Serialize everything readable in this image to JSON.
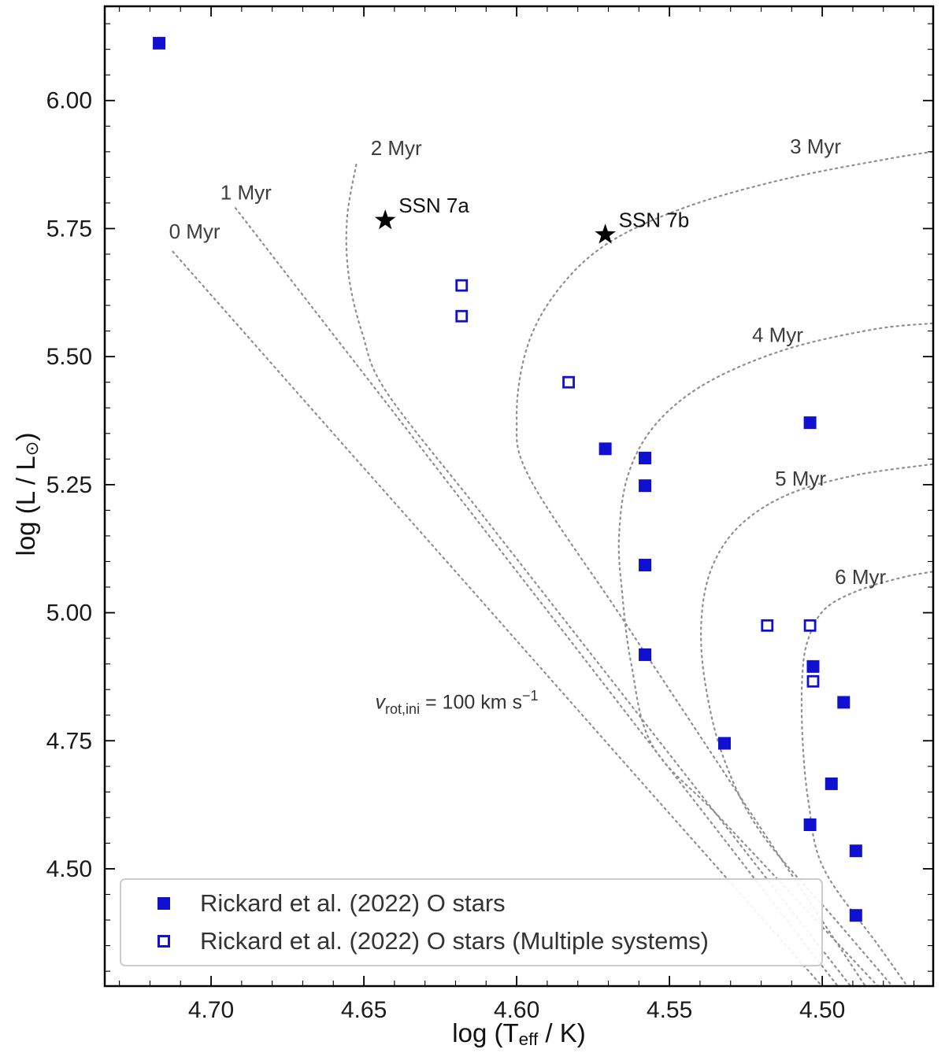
{
  "chart_data": {
    "type": "scatter",
    "title": "",
    "xlabel_parts": [
      {
        "text": "log (T"
      },
      {
        "text": "eff",
        "style": "sub"
      },
      {
        "text": " / K)"
      }
    ],
    "ylabel_parts": [
      {
        "text": "log (L / L"
      },
      {
        "text": "⊙",
        "style": "sub"
      },
      {
        "text": ")"
      }
    ],
    "x_axis": {
      "left_value": 4.7348,
      "right_value": 4.4637,
      "reversed": true,
      "minor_step": 0.01,
      "ticks": [
        {
          "value": 4.7,
          "label": "4.70"
        },
        {
          "value": 4.65,
          "label": "4.65"
        },
        {
          "value": 4.6,
          "label": "4.60"
        },
        {
          "value": 4.55,
          "label": "4.55"
        },
        {
          "value": 4.5,
          "label": "4.50"
        }
      ]
    },
    "y_axis": {
      "bottom_value": 4.271,
      "top_value": 6.184,
      "minor_step": 0.05,
      "ticks": [
        {
          "value": 4.5,
          "label": "4.50"
        },
        {
          "value": 4.75,
          "label": "4.75"
        },
        {
          "value": 5.0,
          "label": "5.00"
        },
        {
          "value": 5.25,
          "label": "5.25"
        },
        {
          "value": 5.5,
          "label": "5.50"
        },
        {
          "value": 5.75,
          "label": "5.75"
        },
        {
          "value": 6.0,
          "label": "6.00"
        }
      ]
    },
    "series": [
      {
        "name": "Rickard et al. (2022) O stars",
        "marker": "filled-square",
        "points": [
          [
            4.717,
            6.112
          ],
          [
            4.571,
            5.32
          ],
          [
            4.558,
            5.302
          ],
          [
            4.558,
            5.248
          ],
          [
            4.504,
            5.371
          ],
          [
            4.558,
            5.093
          ],
          [
            4.558,
            4.918
          ],
          [
            4.503,
            4.895
          ],
          [
            4.493,
            4.825
          ],
          [
            4.532,
            4.745
          ],
          [
            4.497,
            4.666
          ],
          [
            4.504,
            4.586
          ],
          [
            4.489,
            4.535
          ],
          [
            4.489,
            4.409
          ]
        ]
      },
      {
        "name": "Rickard et al. (2022) O stars (Multiple systems)",
        "marker": "open-square",
        "points": [
          [
            4.618,
            5.639
          ],
          [
            4.618,
            5.579
          ],
          [
            4.583,
            5.45
          ],
          [
            4.518,
            4.975
          ],
          [
            4.504,
            4.975
          ],
          [
            4.503,
            4.866
          ]
        ]
      }
    ],
    "special_points": [
      {
        "label": "SSN 7a",
        "x": 4.643,
        "y": 5.766
      },
      {
        "label": "SSN 7b",
        "x": 4.571,
        "y": 5.738
      }
    ],
    "isochrones": [
      {
        "label": "0 Myr",
        "label_pos": [
          4.7054,
          5.741
        ],
        "points": [
          [
            4.7125,
            5.705
          ],
          [
            4.6822,
            5.5
          ],
          [
            4.6526,
            5.3
          ],
          [
            4.6229,
            5.1
          ],
          [
            4.5933,
            4.9
          ],
          [
            4.5637,
            4.7
          ],
          [
            4.534,
            4.5
          ],
          [
            4.5044,
            4.3
          ],
          [
            4.4985,
            4.26
          ]
        ]
      },
      {
        "label": "1 Myr",
        "label_pos": [
          4.6886,
          5.817
        ],
        "points": [
          [
            4.692,
            5.79
          ],
          [
            4.6674,
            5.6
          ],
          [
            4.6414,
            5.4
          ],
          [
            4.6155,
            5.2
          ],
          [
            4.5895,
            5.0
          ],
          [
            4.5636,
            4.8
          ],
          [
            4.5376,
            4.6
          ],
          [
            4.5117,
            4.4
          ],
          [
            4.4935,
            4.26
          ]
        ]
      },
      {
        "label": "2 Myr",
        "label_pos": [
          4.6394,
          5.904
        ],
        "points": [
          [
            4.6525,
            5.875
          ],
          [
            4.6555,
            5.77
          ],
          [
            4.655,
            5.66
          ],
          [
            4.6505,
            5.545
          ],
          [
            4.6425,
            5.43
          ],
          [
            4.6124,
            5.2
          ],
          [
            4.5862,
            5.0
          ],
          [
            4.56,
            4.8
          ],
          [
            4.5338,
            4.6
          ],
          [
            4.5076,
            4.4
          ],
          [
            4.4893,
            4.26
          ]
        ]
      },
      {
        "label": "3 Myr",
        "label_pos": [
          4.5022,
          5.907
        ],
        "points": [
          [
            4.464,
            5.9
          ],
          [
            4.4795,
            5.885
          ],
          [
            4.5135,
            5.845
          ],
          [
            4.5455,
            5.79
          ],
          [
            4.5705,
            5.72
          ],
          [
            4.5865,
            5.63
          ],
          [
            4.5965,
            5.52
          ],
          [
            4.6,
            5.38
          ],
          [
            4.5955,
            5.26
          ],
          [
            4.5667,
            5.0
          ],
          [
            4.5445,
            4.8
          ],
          [
            4.5224,
            4.6
          ],
          [
            4.5002,
            4.4
          ],
          [
            4.4847,
            4.26
          ]
        ]
      },
      {
        "label": "4 Myr",
        "label_pos": [
          4.5146,
          5.539
        ],
        "points": [
          [
            4.464,
            5.565
          ],
          [
            4.4835,
            5.553
          ],
          [
            4.5125,
            5.513
          ],
          [
            4.538,
            5.448
          ],
          [
            4.5545,
            5.368
          ],
          [
            4.5635,
            5.27
          ],
          [
            4.5665,
            5.15
          ],
          [
            4.5655,
            5.04
          ],
          [
            4.5625,
            4.9
          ],
          [
            4.5555,
            4.74
          ],
          [
            4.5335,
            4.6
          ],
          [
            4.5021,
            4.4
          ],
          [
            4.4801,
            4.26
          ]
        ]
      },
      {
        "label": "5 Myr",
        "label_pos": [
          4.5071,
          5.259
        ],
        "points": [
          [
            4.464,
            5.29
          ],
          [
            4.4895,
            5.268
          ],
          [
            4.5115,
            5.23
          ],
          [
            4.527,
            5.17
          ],
          [
            4.536,
            5.09
          ],
          [
            4.5395,
            4.99
          ],
          [
            4.5385,
            4.87
          ],
          [
            4.5325,
            4.72
          ],
          [
            4.52,
            4.57
          ],
          [
            4.4956,
            4.4
          ],
          [
            4.4755,
            4.26
          ]
        ]
      },
      {
        "label": "6 Myr",
        "label_pos": [
          4.4875,
          5.067
        ],
        "points": [
          [
            4.464,
            5.08
          ],
          [
            4.473,
            5.07
          ],
          [
            4.4875,
            5.045
          ],
          [
            4.499,
            5.008
          ],
          [
            4.5045,
            4.95
          ],
          [
            4.5065,
            4.88
          ],
          [
            4.5065,
            4.76
          ],
          [
            4.5045,
            4.63
          ],
          [
            4.4995,
            4.5
          ],
          [
            4.4816,
            4.35
          ],
          [
            4.4709,
            4.26
          ]
        ]
      }
    ],
    "annotation": {
      "pos": [
        4.6196,
        4.813
      ],
      "parts": [
        {
          "text": "v",
          "style": "italic"
        },
        {
          "text": "rot,ini",
          "style": "sub"
        },
        {
          "text": " = 100 km s",
          "style": "normal"
        },
        {
          "text": "−1",
          "style": "sup"
        }
      ]
    },
    "legend": {
      "entries": [
        {
          "marker": "filled-square",
          "label": "Rickard et al. (2022) O stars"
        },
        {
          "marker": "open-square",
          "label": "Rickard et al. (2022) O stars (Multiple systems)"
        }
      ]
    },
    "colors": {
      "points": "#1010d0",
      "isochrones": "#8f8f8f",
      "special": "#000000",
      "text": "#1a1a1a",
      "frame": "#000000",
      "legend_border": "#cccccc"
    }
  }
}
